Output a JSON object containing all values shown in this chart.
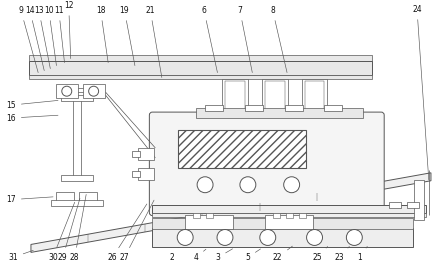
{
  "figure_size": [
    4.43,
    2.63
  ],
  "dpi": 100,
  "bg_color": "#ffffff",
  "line_color": "#555555",
  "line_width": 0.7,
  "thin_line": 0.5,
  "top_labels": [
    [
      "9",
      20,
      10
    ],
    [
      "14",
      29,
      10
    ],
    [
      "13",
      38,
      10
    ],
    [
      "10",
      48,
      10
    ],
    [
      "11",
      58,
      10
    ],
    [
      "12",
      68,
      5
    ],
    [
      "18",
      100,
      10
    ],
    [
      "19",
      124,
      10
    ],
    [
      "21",
      150,
      10
    ],
    [
      "6",
      204,
      10
    ],
    [
      "7",
      240,
      10
    ],
    [
      "8",
      273,
      10
    ],
    [
      "24",
      415,
      10
    ]
  ],
  "left_labels": [
    [
      "15",
      10,
      105
    ],
    [
      "16",
      10,
      118
    ],
    [
      "17",
      10,
      200
    ]
  ],
  "bot_labels": [
    [
      "31",
      12,
      256
    ],
    [
      "30",
      52,
      256
    ],
    [
      "29",
      62,
      256
    ],
    [
      "28",
      74,
      256
    ],
    [
      "26",
      112,
      256
    ],
    [
      "27",
      124,
      256
    ],
    [
      "2",
      172,
      256
    ],
    [
      "4",
      196,
      256
    ],
    [
      "3",
      218,
      256
    ],
    [
      "5",
      248,
      256
    ],
    [
      "22",
      278,
      256
    ],
    [
      "25",
      320,
      256
    ],
    [
      "23",
      343,
      256
    ],
    [
      "1",
      360,
      256
    ]
  ]
}
